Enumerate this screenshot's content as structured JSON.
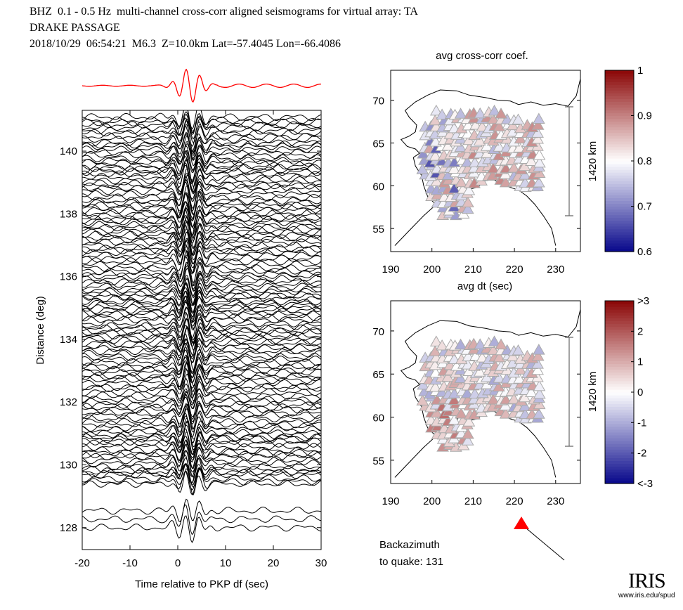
{
  "header": {
    "line1": "BHZ  0.1 - 0.5 Hz  multi-channel cross-corr aligned seismograms for virtual array: TA",
    "line2": "DRAKE PASSAGE",
    "line3": "2018/10/29  06:54:21  M6.3  Z=10.0km Lat=-57.4045 Lon=-66.4086"
  },
  "chart_data": [
    {
      "type": "line",
      "xlabel": "Time relative to PKP df (sec)",
      "ylabel": "Distance (deg)",
      "xlim": [
        -20,
        30
      ],
      "ylim": [
        127.3,
        141.3
      ],
      "xticks": [
        "-20",
        "-10",
        "0",
        "10",
        "20",
        "30"
      ],
      "yticks": [
        "128",
        "130",
        "132",
        "134",
        "136",
        "138",
        "140"
      ],
      "stack_color": "#ff0000",
      "trace_color": "#000000"
    },
    {
      "type": "scatter",
      "title": "avg cross-corr coef.",
      "xticks": [
        "190",
        "200",
        "210",
        "220",
        "230"
      ],
      "yticks": [
        "55",
        "60",
        "65",
        "70"
      ],
      "xlim": [
        190,
        236
      ],
      "ylim": [
        52.3,
        73.5
      ],
      "scale_label": "1420 km",
      "colorbar": {
        "range": [
          0.6,
          1
        ],
        "ticks": [
          "1",
          "0.9",
          "0.8",
          "0.7",
          "0.6"
        ]
      }
    },
    {
      "type": "scatter",
      "title": "avg dt (sec)",
      "xticks": [
        "190",
        "200",
        "210",
        "220",
        "230"
      ],
      "yticks": [
        "55",
        "60",
        "65",
        "70"
      ],
      "xlim": [
        190,
        236
      ],
      "ylim": [
        52.3,
        73.5
      ],
      "scale_label": "1420 km",
      "colorbar": {
        "range": [
          -3,
          3
        ],
        "ticks": [
          ">3",
          "2",
          "1",
          "0",
          "-1",
          "-2",
          "<-3"
        ]
      }
    }
  ],
  "backazimuth": {
    "label1": "Backazimuth",
    "label2": "to quake:  131",
    "value": 131,
    "marker_color": "#ff0000"
  },
  "logo": {
    "text": "IRIS",
    "url": "www.iris.edu/spud"
  }
}
